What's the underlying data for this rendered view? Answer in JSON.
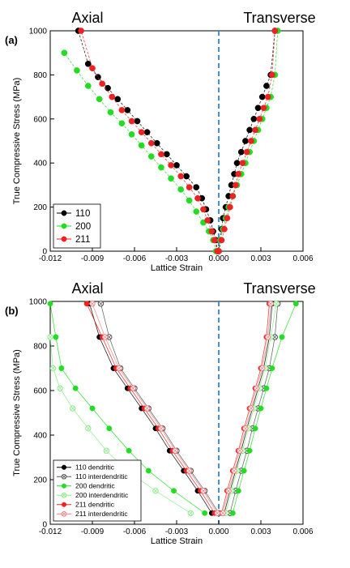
{
  "chart_data": [
    {
      "type": "line",
      "panel_label": "(a)",
      "left_title": "Axial",
      "right_title": "Transverse",
      "xlabel": "Lattice Strain",
      "ylabel": "True Compressive Stress (MPa)",
      "xlim": [
        -0.012,
        0.006
      ],
      "ylim": [
        0,
        1000
      ],
      "xticks": [
        "-0.012",
        "-0.009",
        "-0.006",
        "-0.003",
        "0.000",
        "0.003",
        "0.006"
      ],
      "yticks": [
        "0",
        "200",
        "400",
        "600",
        "800",
        "1000"
      ],
      "legend_position": "bottom-left",
      "reference_line_x": 0,
      "series": [
        {
          "name": "110",
          "color": "#000000",
          "marker": "filled-circle",
          "axial": {
            "x": [
              -0.0001,
              -0.0002,
              -0.0004,
              -0.0006,
              -0.0009,
              -0.0012,
              -0.0016,
              -0.0023,
              -0.003,
              -0.0037,
              -0.0044,
              -0.0051,
              -0.0058,
              -0.0065,
              -0.0072,
              -0.0079,
              -0.0086,
              -0.0093,
              -0.01
            ],
            "y": [
              0,
              50,
              90,
              140,
              190,
              240,
              290,
              340,
              390,
              440,
              490,
              540,
              590,
              640,
              690,
              740,
              790,
              850,
              1000
            ]
          },
          "transverse": {
            "x": [
              0.0,
              0.0001,
              0.0002,
              0.0003,
              0.0005,
              0.0007,
              0.0009,
              0.0011,
              0.0013,
              0.0016,
              0.0019,
              0.0022,
              0.0025,
              0.0028,
              0.0031,
              0.0034,
              0.0037,
              0.004
            ],
            "y": [
              0,
              50,
              100,
              150,
              200,
              250,
              300,
              350,
              400,
              450,
              500,
              550,
              600,
              650,
              700,
              750,
              800,
              1000
            ]
          }
        },
        {
          "name": "200",
          "color": "#22dd22",
          "marker": "filled-circle",
          "axial": {
            "x": [
              -0.0002,
              -0.0004,
              -0.0007,
              -0.0011,
              -0.0016,
              -0.0021,
              -0.0027,
              -0.0034,
              -0.0041,
              -0.0048,
              -0.0055,
              -0.0062,
              -0.0069,
              -0.0077,
              -0.0085,
              -0.0093,
              -0.0101,
              -0.011
            ],
            "y": [
              0,
              50,
              90,
              130,
              180,
              230,
              280,
              330,
              380,
              430,
              480,
              530,
              580,
              630,
              690,
              750,
              820,
              900
            ]
          },
          "transverse": {
            "x": [
              0.0,
              0.0001,
              0.0003,
              0.0005,
              0.0007,
              0.001,
              0.0013,
              0.0016,
              0.0019,
              0.0022,
              0.0025,
              0.0028,
              0.0031,
              0.0034,
              0.0037,
              0.004,
              0.0042
            ],
            "y": [
              0,
              50,
              100,
              150,
              200,
              250,
              300,
              350,
              400,
              450,
              500,
              550,
              600,
              650,
              700,
              800,
              1000
            ]
          }
        },
        {
          "name": "211",
          "color": "#ee2222",
          "marker": "filled-circle",
          "axial": {
            "x": [
              -0.0001,
              -0.0003,
              -0.0005,
              -0.0008,
              -0.0011,
              -0.0015,
              -0.0021,
              -0.0027,
              -0.0034,
              -0.0041,
              -0.0048,
              -0.0055,
              -0.0062,
              -0.0069,
              -0.0076,
              -0.0083,
              -0.009,
              -0.0098
            ],
            "y": [
              0,
              50,
              90,
              140,
              190,
              240,
              290,
              340,
              390,
              440,
              490,
              540,
              590,
              640,
              700,
              760,
              830,
              1000
            ]
          },
          "transverse": {
            "x": [
              0.0,
              0.0002,
              0.0004,
              0.0006,
              0.0008,
              0.001,
              0.0012,
              0.0014,
              0.0017,
              0.002,
              0.0023,
              0.0026,
              0.0029,
              0.0032,
              0.0035,
              0.0038,
              0.004
            ],
            "y": [
              0,
              50,
              100,
              150,
              200,
              250,
              300,
              350,
              400,
              450,
              500,
              550,
              600,
              650,
              700,
              800,
              1000
            ]
          }
        }
      ]
    },
    {
      "type": "line",
      "panel_label": "(b)",
      "left_title": "Axial",
      "right_title": "Transverse",
      "xlabel": "Lattice Strain",
      "ylabel": "True Compressive Stress (MPa)",
      "xlim": [
        -0.012,
        0.006
      ],
      "ylim": [
        0,
        1000
      ],
      "xticks": [
        "-0.012",
        "-0.009",
        "-0.006",
        "-0.003",
        "0.000",
        "0.003",
        "0.006"
      ],
      "yticks": [
        "0",
        "200",
        "400",
        "600",
        "800",
        "1000"
      ],
      "legend_position": "bottom-left",
      "reference_line_x": 0,
      "series": [
        {
          "name": "110 dendritic",
          "color": "#000000",
          "marker": "filled-circle",
          "axial": {
            "x": [
              -0.0005,
              -0.0015,
              -0.0025,
              -0.0035,
              -0.0045,
              -0.0055,
              -0.0065,
              -0.0075,
              -0.0085,
              -0.0092
            ],
            "y": [
              50,
              150,
              240,
              330,
              430,
              520,
              610,
              700,
              840,
              990
            ]
          },
          "transverse": {
            "x": [
              0.0004,
              0.0008,
              0.0012,
              0.0016,
              0.002,
              0.0024,
              0.0028,
              0.0032,
              0.0036,
              0.0038
            ],
            "y": [
              50,
              150,
              240,
              330,
              430,
              520,
              610,
              700,
              840,
              990
            ]
          }
        },
        {
          "name": "110 interdendritic",
          "color": "#555555",
          "marker": "hollow-crossed-circle",
          "axial": {
            "x": [
              0.0,
              -0.001,
              -0.002,
              -0.003,
              -0.004,
              -0.005,
              -0.006,
              -0.007,
              -0.0078,
              -0.0084
            ],
            "y": [
              50,
              150,
              240,
              330,
              430,
              520,
              610,
              700,
              840,
              990
            ]
          },
          "transverse": {
            "x": [
              0.0008,
              0.0012,
              0.0016,
              0.002,
              0.0024,
              0.0028,
              0.0032,
              0.0036,
              0.004,
              0.0042
            ],
            "y": [
              50,
              150,
              240,
              330,
              430,
              520,
              610,
              700,
              840,
              990
            ]
          }
        },
        {
          "name": "200 dendritic",
          "color": "#22dd22",
          "marker": "filled-circle",
          "axial": {
            "x": [
              -0.001,
              -0.0032,
              -0.005,
              -0.0064,
              -0.0078,
              -0.009,
              -0.0102,
              -0.0112,
              -0.0116,
              -0.012
            ],
            "y": [
              50,
              150,
              240,
              330,
              430,
              520,
              610,
              700,
              840,
              990
            ]
          },
          "transverse": {
            "x": [
              0.001,
              0.0014,
              0.0018,
              0.0022,
              0.0026,
              0.003,
              0.0034,
              0.0038,
              0.0045,
              0.0055
            ],
            "y": [
              50,
              150,
              240,
              330,
              430,
              520,
              610,
              700,
              840,
              990
            ]
          }
        },
        {
          "name": "200 interdendritic",
          "color": "#88ee88",
          "marker": "hollow-crossed-circle",
          "axial": {
            "x": [
              -0.002,
              -0.0045,
              -0.0065,
              -0.008,
              -0.0093,
              -0.0104,
              -0.0113,
              -0.0118,
              -0.012
            ],
            "y": [
              50,
              150,
              240,
              330,
              430,
              520,
              610,
              700,
              840
            ]
          },
          "transverse": {
            "x": [
              0.0005,
              0.0009,
              0.0013,
              0.0017,
              0.0021,
              0.0025,
              0.0029,
              0.0033,
              0.0037,
              0.0041
            ],
            "y": [
              50,
              150,
              240,
              330,
              430,
              520,
              610,
              700,
              840,
              990
            ]
          }
        },
        {
          "name": "211 dendritic",
          "color": "#ee2222",
          "marker": "filled-circle",
          "axial": {
            "x": [
              -0.0003,
              -0.0013,
              -0.0023,
              -0.0033,
              -0.0043,
              -0.0053,
              -0.0063,
              -0.0073,
              -0.0083,
              -0.0094
            ],
            "y": [
              50,
              150,
              240,
              330,
              430,
              520,
              610,
              700,
              840,
              990
            ]
          },
          "transverse": {
            "x": [
              0.0002,
              0.0006,
              0.001,
              0.0014,
              0.0018,
              0.0022,
              0.0026,
              0.003,
              0.0034,
              0.0036
            ],
            "y": [
              50,
              150,
              240,
              330,
              430,
              520,
              610,
              700,
              840,
              990
            ]
          }
        },
        {
          "name": "211 interdendritic",
          "color": "#f08080",
          "marker": "hollow-crossed-circle",
          "axial": {
            "x": [
              -0.0001,
              -0.0011,
              -0.0021,
              -0.0031,
              -0.0041,
              -0.0051,
              -0.0061,
              -0.0071,
              -0.0081,
              -0.009
            ],
            "y": [
              50,
              150,
              240,
              330,
              430,
              520,
              610,
              700,
              840,
              990
            ]
          },
          "transverse": {
            "x": [
              0.0003,
              0.0007,
              0.0011,
              0.0015,
              0.0019,
              0.0023,
              0.0027,
              0.0031,
              0.0035,
              0.0037
            ],
            "y": [
              50,
              150,
              240,
              330,
              430,
              520,
              610,
              700,
              840,
              990
            ]
          }
        }
      ]
    }
  ]
}
